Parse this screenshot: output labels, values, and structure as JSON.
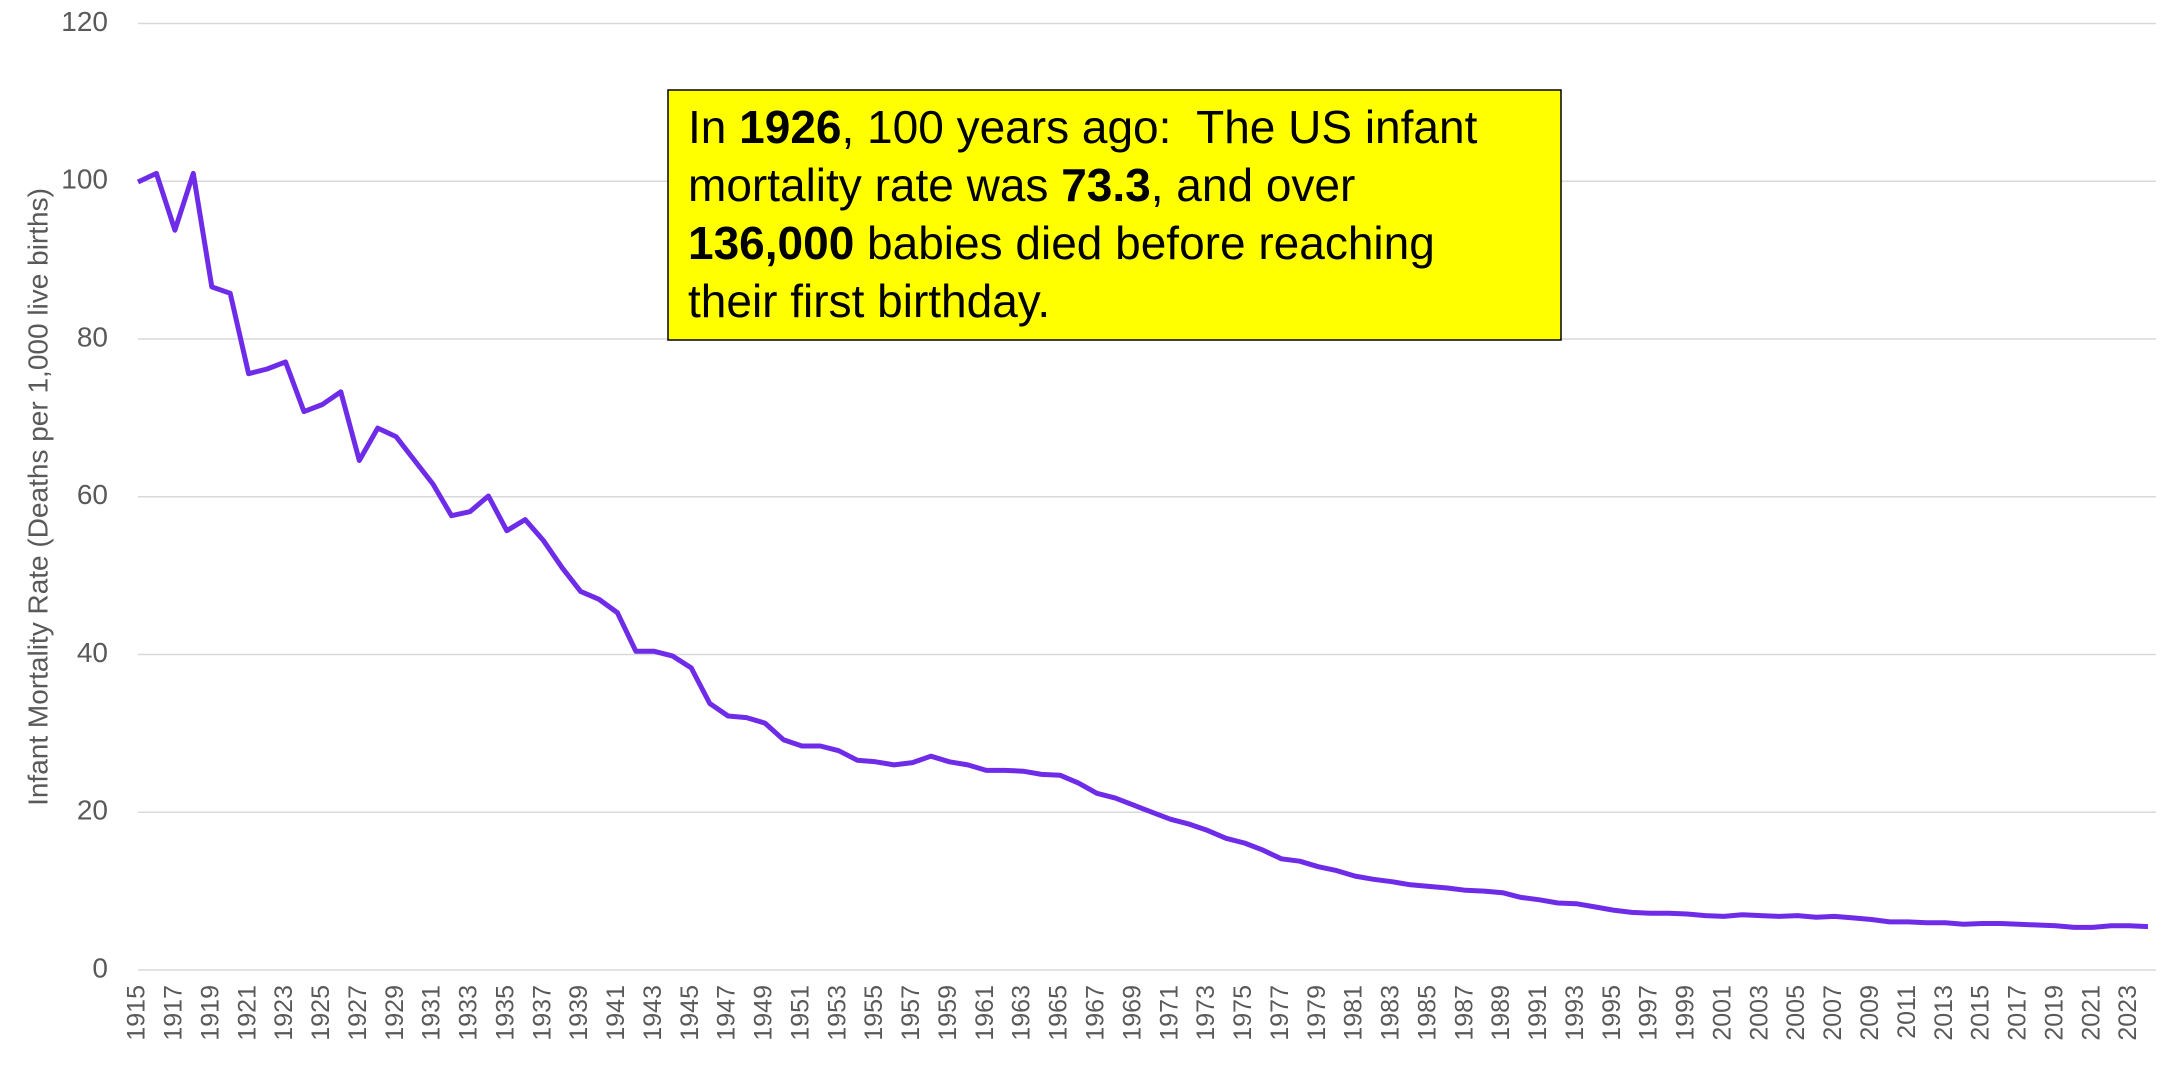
{
  "chart_data": {
    "type": "line",
    "y_label": "Infant Mortality Rate (Deaths per 1,000 live births)",
    "annotation": {
      "lines": [
        [
          {
            "text": "In ",
            "bold": false
          },
          {
            "text": "1926",
            "bold": true
          },
          {
            "text": ", 100 years ago:  The US infant",
            "bold": false
          }
        ],
        [
          {
            "text": "mortality rate was ",
            "bold": false
          },
          {
            "text": "73.3",
            "bold": true
          },
          {
            "text": ", and over",
            "bold": false
          }
        ],
        [
          {
            "text": "136,000",
            "bold": true
          },
          {
            "text": " babies died before reaching",
            "bold": false
          }
        ],
        [
          {
            "text": "their first birthday.",
            "bold": false
          }
        ]
      ]
    },
    "categories": [
      "1915",
      null,
      "1917",
      null,
      "1919",
      null,
      "1921",
      null,
      "1923",
      null,
      "1925",
      null,
      "1927",
      null,
      "1929",
      null,
      "1931",
      null,
      "1933",
      null,
      "1935",
      null,
      "1937",
      null,
      "1939",
      null,
      "1941",
      null,
      "1943",
      null,
      "1945",
      null,
      "1947",
      null,
      "1949",
      null,
      "1951",
      null,
      "1953",
      null,
      "1955",
      null,
      "1957",
      null,
      "1959",
      null,
      "1961",
      null,
      "1963",
      null,
      "1965",
      null,
      "1967",
      null,
      "1969",
      null,
      "1971",
      null,
      "1973",
      null,
      "1975",
      null,
      "1977",
      null,
      "1979",
      null,
      "1981",
      null,
      "1983",
      null,
      "1985",
      null,
      "1987",
      null,
      "1989",
      null,
      "1991",
      null,
      "1993",
      null,
      "1995",
      null,
      "1997",
      null,
      "1999",
      null,
      "2001",
      null,
      "2003",
      null,
      "2005",
      null,
      "2007",
      null,
      "2009",
      null,
      "2011",
      null,
      "2013",
      null,
      "2015",
      null,
      "2017",
      null,
      "2019",
      null,
      "2021",
      null,
      "2023",
      null
    ],
    "values": [
      99.9,
      101,
      93.8,
      101,
      86.6,
      85.8,
      75.6,
      76.2,
      77.1,
      70.8,
      71.7,
      73.3,
      64.6,
      68.7,
      67.6,
      64.6,
      61.6,
      57.6,
      58.1,
      60.1,
      55.7,
      57.1,
      54.4,
      51.0,
      48.0,
      47.0,
      45.3,
      40.4,
      40.4,
      39.8,
      38.3,
      33.8,
      32.2,
      32.0,
      31.3,
      29.2,
      28.4,
      28.4,
      27.8,
      26.6,
      26.4,
      26.0,
      26.3,
      27.1,
      26.4,
      26.0,
      25.3,
      25.3,
      25.2,
      24.8,
      24.7,
      23.7,
      22.4,
      21.8,
      20.9,
      20.0,
      19.1,
      18.5,
      17.7,
      16.7,
      16.1,
      15.2,
      14.1,
      13.8,
      13.1,
      12.6,
      11.9,
      11.5,
      11.2,
      10.8,
      10.6,
      10.4,
      10.1,
      10.0,
      9.8,
      9.2,
      8.9,
      8.5,
      8.4,
      8.0,
      7.6,
      7.3,
      7.2,
      7.2,
      7.1,
      6.9,
      6.8,
      7.0,
      6.9,
      6.8,
      6.9,
      6.7,
      6.8,
      6.6,
      6.4,
      6.1,
      6.1,
      6.0,
      6.0,
      5.8,
      5.9,
      5.9,
      5.8,
      5.7,
      5.6,
      5.4,
      5.4,
      5.6,
      5.6,
      5.5
    ],
    "color": "#6f2ce8",
    "ylim": [
      0,
      120
    ],
    "yticks": [
      0,
      20,
      40,
      60,
      80,
      100,
      120
    ],
    "grid": true
  }
}
